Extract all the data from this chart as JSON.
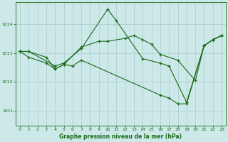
{
  "title": "Graphe pression niveau de la mer (hPa)",
  "bg_color": "#cce8e8",
  "grid_color": "#aacccc",
  "line_color": "#1a6b1a",
  "marker_color": "#1a6b1a",
  "label_color": "#1a6b1a",
  "xlim": [
    -0.5,
    23.5
  ],
  "ylim": [
    1010.5,
    1014.75
  ],
  "yticks": [
    1011,
    1012,
    1013,
    1014
  ],
  "xticks": [
    0,
    1,
    2,
    3,
    4,
    5,
    6,
    7,
    8,
    9,
    10,
    11,
    12,
    13,
    14,
    15,
    16,
    17,
    18,
    19,
    20,
    21,
    22,
    23
  ],
  "curves": [
    {
      "x": [
        0,
        1,
        4,
        5,
        7,
        10,
        11,
        14,
        16,
        17,
        19,
        21,
        22,
        23
      ],
      "y": [
        1013.05,
        1013.05,
        1012.55,
        1012.65,
        1013.15,
        1014.5,
        1014.1,
        1012.8,
        1012.65,
        1012.55,
        1011.3,
        1013.25,
        1013.45,
        1013.6
      ]
    },
    {
      "x": [
        0,
        1,
        3,
        4,
        5,
        6,
        7,
        16,
        17,
        18,
        19,
        21,
        22,
        23
      ],
      "y": [
        1013.05,
        1012.85,
        1012.65,
        1012.45,
        1012.6,
        1012.55,
        1012.75,
        1011.55,
        1011.45,
        1011.25,
        1011.25,
        1013.25,
        1013.45,
        1013.6
      ]
    },
    {
      "x": [
        0,
        1,
        3,
        4,
        5,
        7,
        9,
        10,
        12,
        13,
        14,
        15,
        16,
        18,
        20,
        21,
        22,
        23
      ],
      "y": [
        1013.05,
        1013.05,
        1012.85,
        1012.45,
        1012.6,
        1013.2,
        1013.4,
        1013.4,
        1013.5,
        1013.6,
        1013.45,
        1013.3,
        1012.95,
        1012.75,
        1012.05,
        1013.25,
        1013.45,
        1013.6
      ]
    }
  ]
}
